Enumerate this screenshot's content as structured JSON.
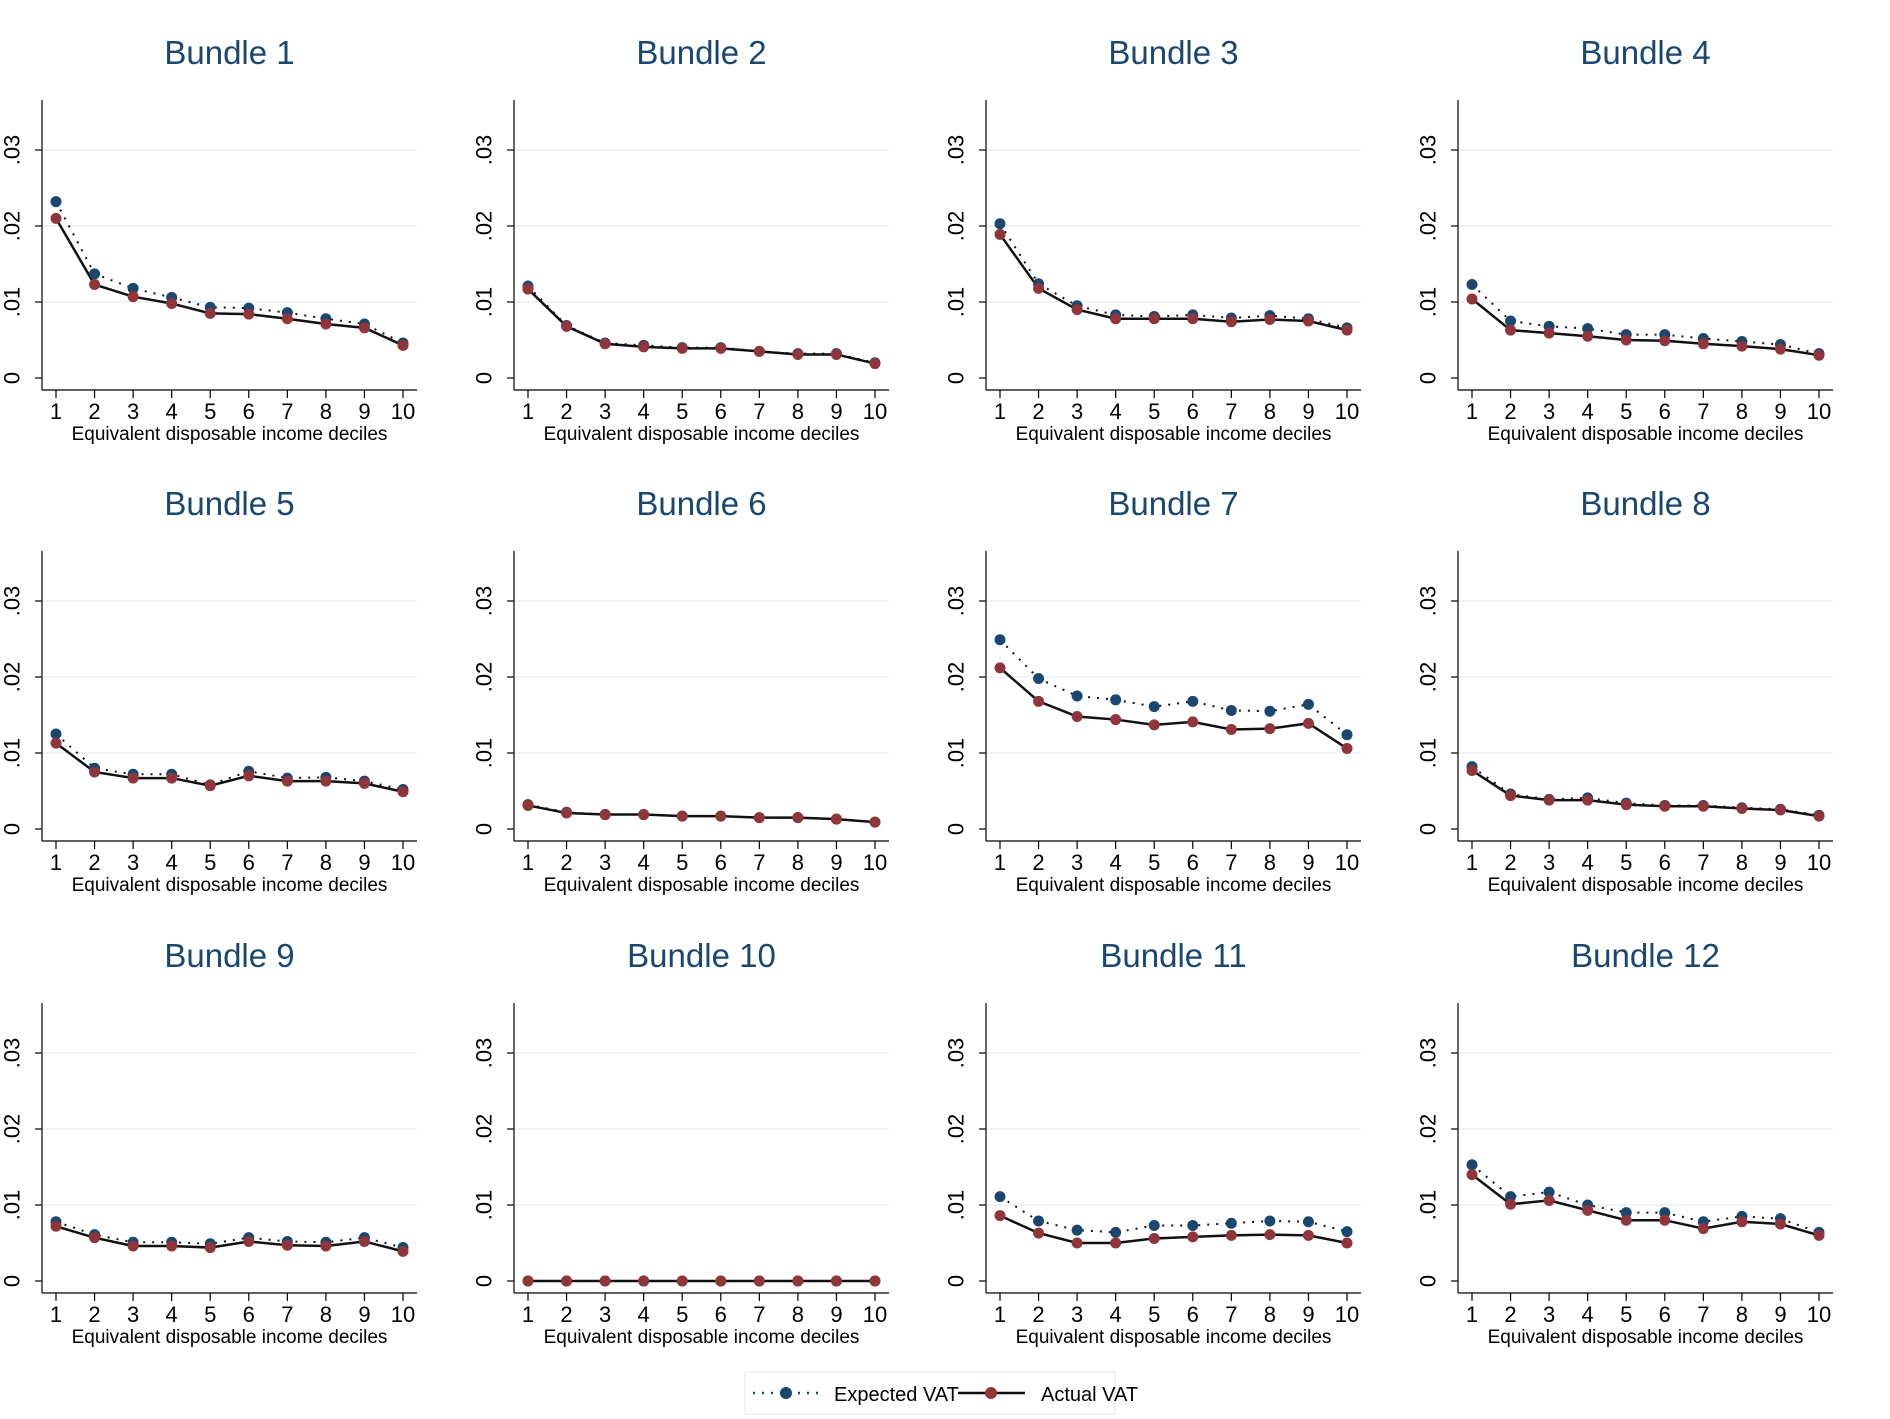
{
  "chart_data": {
    "type": "line",
    "layout": "3x4 small multiples",
    "x": [
      1,
      2,
      3,
      4,
      5,
      6,
      7,
      8,
      9,
      10
    ],
    "xlabel": "Equivalent disposable income deciles",
    "ylim": [
      0,
      0.035
    ],
    "yticks": [
      0,
      0.01,
      0.02,
      0.03
    ],
    "ytick_labels": [
      "0",
      ".01",
      ".02",
      ".03"
    ],
    "grid": true,
    "legend": {
      "position": "bottom-center",
      "entries": [
        {
          "name": "Expected VAT",
          "style": "dotted",
          "color": "#1a476f"
        },
        {
          "name": "Actual VAT",
          "style": "solid",
          "color": "#90353b"
        }
      ]
    },
    "colors": {
      "expected": "#1a476f",
      "actual": "#90353b",
      "title": "#1a476f",
      "grid": "#eaf2f3"
    },
    "panels": [
      {
        "title": "Bundle 1",
        "expected": [
          0.0232,
          0.0137,
          0.0118,
          0.0106,
          0.0093,
          0.0092,
          0.0086,
          0.0078,
          0.0071,
          0.0046
        ],
        "actual": [
          0.021,
          0.0123,
          0.0107,
          0.0098,
          0.0085,
          0.0084,
          0.0078,
          0.0071,
          0.0066,
          0.0043
        ]
      },
      {
        "title": "Bundle 2",
        "expected": [
          0.0121,
          0.0069,
          0.0046,
          0.0043,
          0.004,
          0.004,
          0.0035,
          0.0032,
          0.0032,
          0.002
        ],
        "actual": [
          0.0117,
          0.0068,
          0.0045,
          0.0041,
          0.0039,
          0.0039,
          0.0035,
          0.0031,
          0.0031,
          0.0019
        ]
      },
      {
        "title": "Bundle 3",
        "expected": [
          0.0203,
          0.0124,
          0.0095,
          0.0083,
          0.0081,
          0.0083,
          0.0079,
          0.0082,
          0.0078,
          0.0066
        ],
        "actual": [
          0.0189,
          0.0118,
          0.009,
          0.0078,
          0.0078,
          0.0078,
          0.0074,
          0.0077,
          0.0075,
          0.0063
        ]
      },
      {
        "title": "Bundle 4",
        "expected": [
          0.0123,
          0.0075,
          0.0068,
          0.0065,
          0.0057,
          0.0057,
          0.0052,
          0.0048,
          0.0044,
          0.0032
        ],
        "actual": [
          0.0104,
          0.0063,
          0.0059,
          0.0055,
          0.005,
          0.0049,
          0.0045,
          0.0042,
          0.0038,
          0.003
        ]
      },
      {
        "title": "Bundle 5",
        "expected": [
          0.0125,
          0.008,
          0.0072,
          0.0072,
          0.0058,
          0.0076,
          0.0067,
          0.0068,
          0.0063,
          0.0052
        ],
        "actual": [
          0.0113,
          0.0075,
          0.0067,
          0.0067,
          0.0057,
          0.007,
          0.0063,
          0.0063,
          0.006,
          0.0049
        ]
      },
      {
        "title": "Bundle 6",
        "expected": [
          0.0032,
          0.0022,
          0.0019,
          0.0019,
          0.0017,
          0.0017,
          0.0015,
          0.0015,
          0.0013,
          0.0009
        ],
        "actual": [
          0.0031,
          0.0021,
          0.0019,
          0.0019,
          0.0017,
          0.0017,
          0.0015,
          0.0015,
          0.0013,
          0.0009
        ]
      },
      {
        "title": "Bundle 7",
        "expected": [
          0.0249,
          0.0198,
          0.0175,
          0.017,
          0.0161,
          0.0168,
          0.0156,
          0.0155,
          0.0164,
          0.0124
        ],
        "actual": [
          0.0212,
          0.0168,
          0.0148,
          0.0144,
          0.0137,
          0.0141,
          0.0131,
          0.0132,
          0.0139,
          0.0106
        ]
      },
      {
        "title": "Bundle 8",
        "expected": [
          0.0082,
          0.0046,
          0.0039,
          0.0041,
          0.0034,
          0.0031,
          0.0031,
          0.0028,
          0.0026,
          0.0018
        ],
        "actual": [
          0.0077,
          0.0044,
          0.0038,
          0.0038,
          0.0032,
          0.003,
          0.003,
          0.0027,
          0.0025,
          0.0017
        ]
      },
      {
        "title": "Bundle 9",
        "expected": [
          0.0078,
          0.0061,
          0.0051,
          0.0051,
          0.0049,
          0.0057,
          0.0052,
          0.0051,
          0.0057,
          0.0044
        ],
        "actual": [
          0.0072,
          0.0057,
          0.0046,
          0.0046,
          0.0044,
          0.0052,
          0.0047,
          0.0046,
          0.0052,
          0.0039
        ]
      },
      {
        "title": "Bundle 10",
        "expected": [
          0,
          0,
          0,
          0,
          0,
          0,
          0,
          0,
          0,
          0
        ],
        "actual": [
          0,
          0,
          0,
          0,
          0,
          0,
          0,
          0,
          0,
          0
        ]
      },
      {
        "title": "Bundle 11",
        "expected": [
          0.0111,
          0.0079,
          0.0067,
          0.0064,
          0.0073,
          0.0073,
          0.0076,
          0.0079,
          0.0078,
          0.0065
        ],
        "actual": [
          0.0086,
          0.0063,
          0.005,
          0.005,
          0.0056,
          0.0058,
          0.006,
          0.0061,
          0.006,
          0.005
        ]
      },
      {
        "title": "Bundle 12",
        "expected": [
          0.0153,
          0.0111,
          0.0117,
          0.01,
          0.009,
          0.009,
          0.0078,
          0.0085,
          0.0082,
          0.0064
        ],
        "actual": [
          0.014,
          0.0101,
          0.0106,
          0.0093,
          0.008,
          0.008,
          0.0069,
          0.0078,
          0.0075,
          0.006
        ]
      }
    ]
  }
}
